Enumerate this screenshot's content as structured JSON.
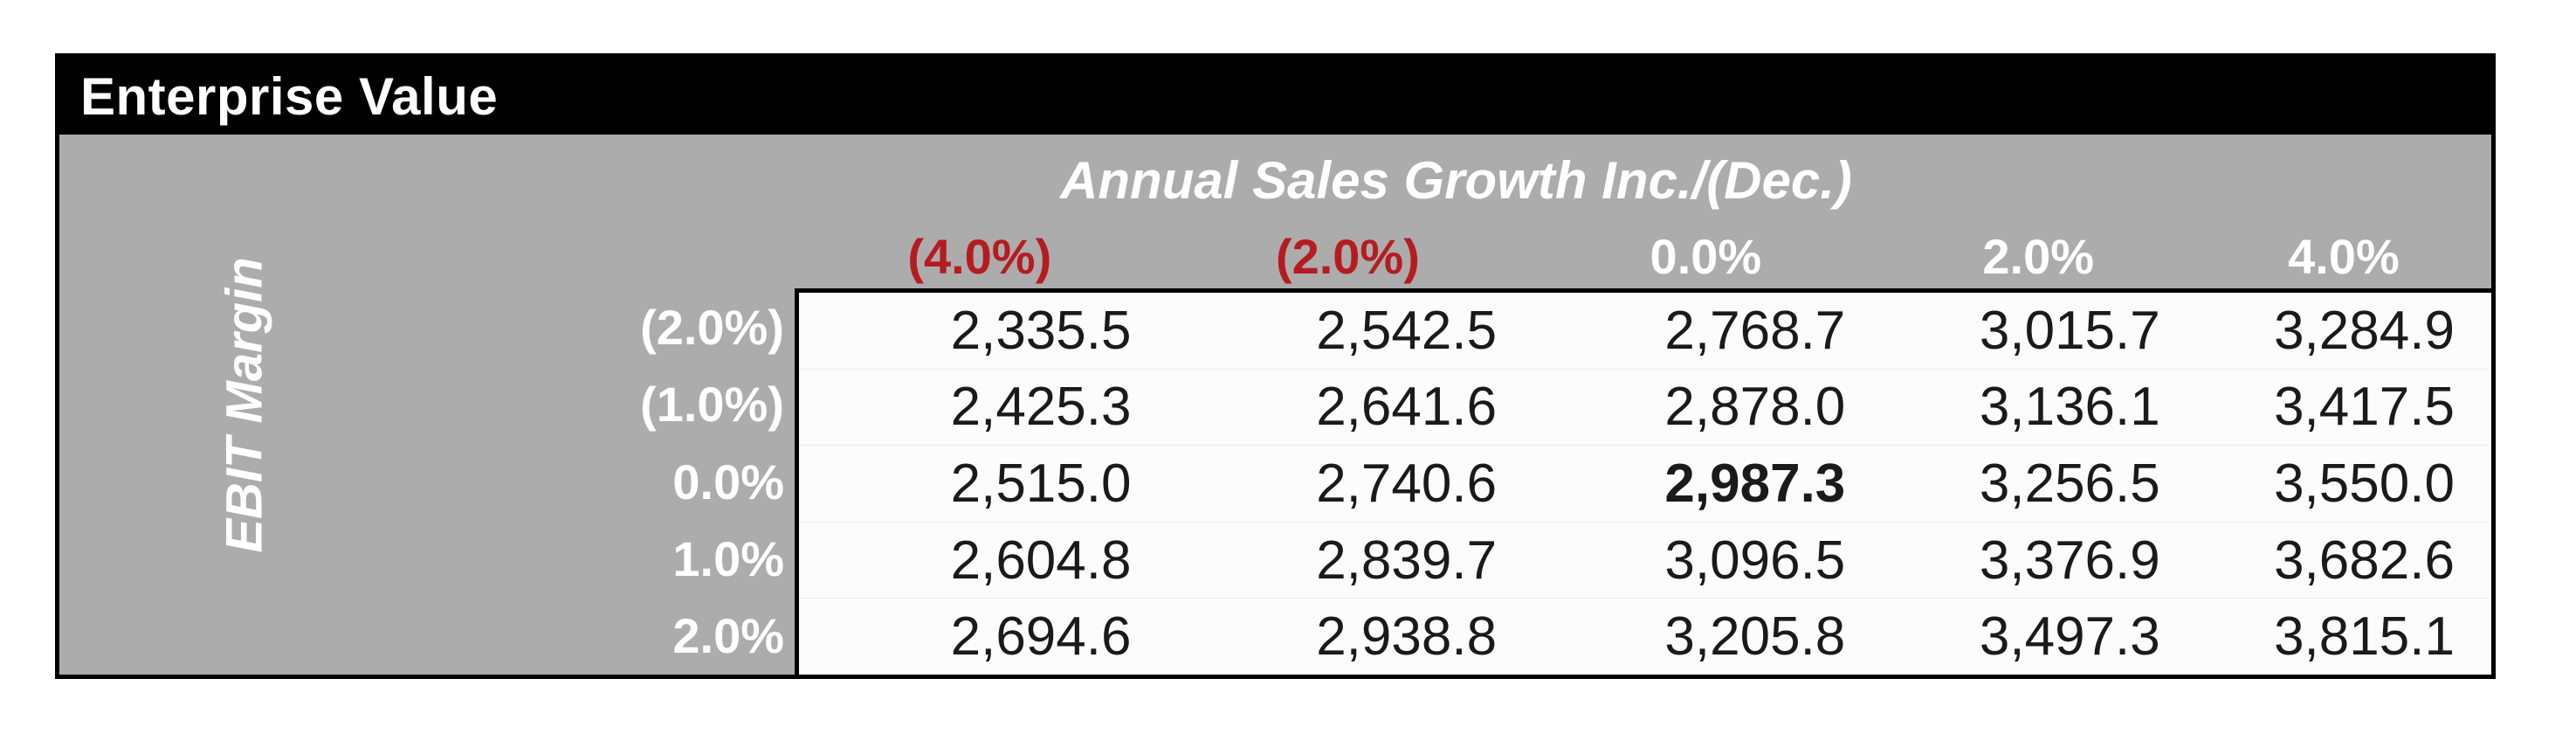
{
  "table": {
    "title": "Enterprise Value",
    "column_group_label": "Annual Sales Growth Inc./(Dec.)",
    "row_group_label": "EBIT Margin",
    "column_headers": [
      {
        "label": "(4.0%)",
        "negative": true
      },
      {
        "label": "(2.0%)",
        "negative": true
      },
      {
        "label": "0.0%",
        "negative": false
      },
      {
        "label": "2.0%",
        "negative": false
      },
      {
        "label": "4.0%",
        "negative": false
      }
    ],
    "row_headers": [
      {
        "label": "(2.0%)",
        "negative": true
      },
      {
        "label": "(1.0%)",
        "negative": true
      },
      {
        "label": "0.0%",
        "negative": false
      },
      {
        "label": "1.0%",
        "negative": false
      },
      {
        "label": "2.0%",
        "negative": false
      }
    ],
    "rows": [
      [
        "2,335.5",
        "2,542.5",
        "2,768.7",
        "3,015.7",
        "3,284.9"
      ],
      [
        "2,425.3",
        "2,641.6",
        "2,878.0",
        "3,136.1",
        "3,417.5"
      ],
      [
        "2,515.0",
        "2,740.6",
        "2,987.3",
        "3,256.5",
        "3,550.0"
      ],
      [
        "2,604.8",
        "2,839.7",
        "3,096.5",
        "3,376.9",
        "3,682.6"
      ],
      [
        "2,694.6",
        "2,938.8",
        "3,205.8",
        "3,497.3",
        "3,815.1"
      ]
    ],
    "emphasized_cell": {
      "row_index": 2,
      "column_index": 2,
      "value": "2,987.3"
    }
  },
  "colors": {
    "title_bar_bg": "#000000",
    "title_text": "#FFFFFF",
    "panel_bg": "#ACACAC",
    "header_text": "#FFFFFF",
    "negative_text": "#B51C20",
    "grid_bg": "#FCFCFC",
    "grid_text": "#1A1A1A",
    "border": "#000000",
    "page_bg": "#FFFFFF"
  }
}
